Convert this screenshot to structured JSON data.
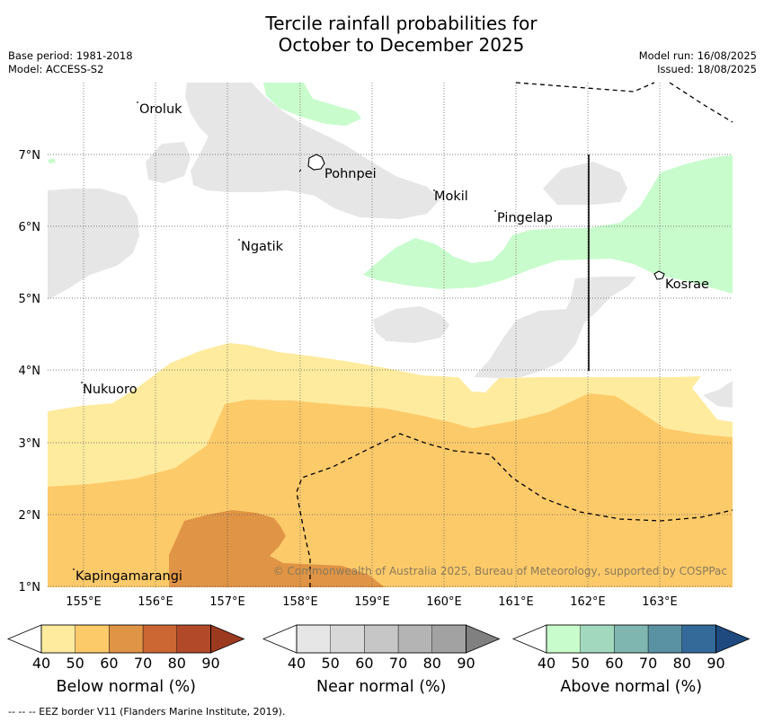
{
  "title_line1": "Tercile rainfall probabilities for",
  "title_line2": "October to December 2025",
  "meta_left": {
    "base_period": "Base period: 1981-2018",
    "model": "Model: ACCESS-S2"
  },
  "meta_right": {
    "model_run": "Model run: 16/08/2025",
    "issued": "Issued: 18/08/2025"
  },
  "lat_labels": [
    "7°N",
    "6°N",
    "5°N",
    "4°N",
    "3°N",
    "2°N",
    "1°N"
  ],
  "lon_labels": [
    "155°E",
    "156°E",
    "157°E",
    "158°E",
    "159°E",
    "160°E",
    "161°E",
    "162°E",
    "163°E"
  ],
  "places": [
    "Oroluk",
    "Pohnpei",
    "Mokil",
    "Pingelap",
    "Ngatik",
    "Kosrae",
    "Nukuoro",
    "Kapingamarangi"
  ],
  "copyright": "© Commonwealth of Australia 2025, Bureau of Meteorology, supported by COSPPac",
  "colorbars": [
    {
      "title": "Below normal (%)",
      "ticks": [
        "40",
        "50",
        "60",
        "70",
        "80",
        "90"
      ],
      "colors": [
        "#ffffff",
        "#ffeb9e",
        "#fdca6a",
        "#e09445",
        "#cc6633",
        "#b24a2a",
        "#9c3a20"
      ]
    },
    {
      "title": "Near normal (%)",
      "ticks": [
        "40",
        "50",
        "60",
        "70",
        "80",
        "90"
      ],
      "colors": [
        "#ffffff",
        "#e6e6e6",
        "#d8d8d8",
        "#c6c6c6",
        "#b4b4b4",
        "#a2a2a2",
        "#808080"
      ]
    },
    {
      "title": "Above normal (%)",
      "ticks": [
        "40",
        "50",
        "60",
        "70",
        "80",
        "90"
      ],
      "colors": [
        "#ffffff",
        "#c8fccc",
        "#a2d9be",
        "#7fb7b0",
        "#5a92a4",
        "#336a9a",
        "#1e4a80"
      ]
    }
  ],
  "footnote": "--  --  -- EEZ border V11 (Flanders Marine Institute, 2019)."
}
